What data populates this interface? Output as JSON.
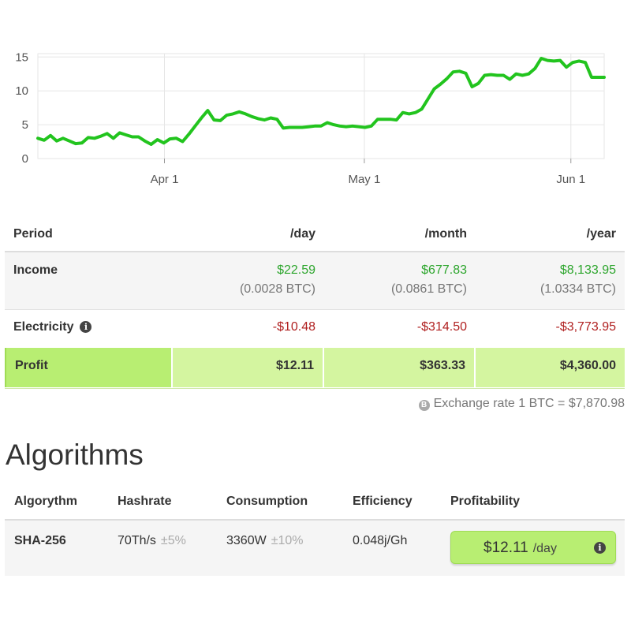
{
  "chart_data": {
    "type": "line",
    "x_ticks": [
      "Apr 1",
      "May 1",
      "Jun 1"
    ],
    "y_ticks": [
      0,
      5,
      10,
      15
    ],
    "ylim": [
      0,
      15.5
    ],
    "grid": true,
    "line_color": "#22c41e",
    "series": [
      {
        "values": [
          3.0,
          2.7,
          3.4,
          2.6,
          3.0,
          2.6,
          2.2,
          2.3,
          3.1,
          3.0,
          3.3,
          3.7,
          3.0,
          3.8,
          3.5,
          3.2,
          3.2,
          2.6,
          2.1,
          2.8,
          2.3,
          2.9,
          3.0,
          2.5,
          3.6,
          4.8,
          6.0,
          7.1,
          5.7,
          5.6,
          6.4,
          6.6,
          6.9,
          6.6,
          6.2,
          5.9,
          5.7,
          6.0,
          5.8,
          4.5,
          4.6,
          4.6,
          4.6,
          4.7,
          4.8,
          4.8,
          5.3,
          5.0,
          4.8,
          4.7,
          4.8,
          4.7,
          4.6,
          4.8,
          5.8,
          5.8,
          5.8,
          5.7,
          6.8,
          6.6,
          6.8,
          7.3,
          8.8,
          10.3,
          11.0,
          11.8,
          12.8,
          12.9,
          12.6,
          10.6,
          11.1,
          12.3,
          12.4,
          12.3,
          12.3,
          11.7,
          12.5,
          12.3,
          12.5,
          13.3,
          14.8,
          14.5,
          14.4,
          14.5,
          13.5,
          14.2,
          14.4,
          14.2,
          12.0,
          12.0,
          12.0
        ]
      }
    ],
    "x_start": "2018-03-13",
    "x_end": "2018-06-06",
    "x_tick_positions": [
      "2018-04-01",
      "2018-05-01",
      "2018-06-01"
    ]
  },
  "profit_table": {
    "headers": [
      "Period",
      "/day",
      "/month",
      "/year"
    ],
    "income": {
      "label": "Income",
      "usd": [
        "$22.59",
        "$677.83",
        "$8,133.95"
      ],
      "btc": [
        "(0.0028 BTC)",
        "(0.0861 BTC)",
        "(1.0334 BTC)"
      ]
    },
    "electricity": {
      "label": "Electricity",
      "icon": "info-icon",
      "values": [
        "-$10.48",
        "-$314.50",
        "-$3,773.95"
      ]
    },
    "profit": {
      "label": "Profit",
      "values": [
        "$12.11",
        "$363.33",
        "$4,360.00"
      ]
    }
  },
  "exchange_rate": {
    "icon": "bitcoin-icon",
    "text": "Exchange rate 1 BTC = $7,870.98"
  },
  "algorithms": {
    "title": "Algorithms",
    "headers": [
      "Algorythm",
      "Hashrate",
      "Consumption",
      "Efficiency",
      "Profitability"
    ],
    "rows": [
      {
        "name": "SHA-256",
        "hashrate": "70Th/s",
        "hashrate_tol": "±5%",
        "consumption": "3360W",
        "consumption_tol": "±10%",
        "efficiency": "0.048j/Gh",
        "profitability": "$12.11",
        "profitability_unit": "/day"
      }
    ]
  },
  "colors": {
    "positive": "#2ea62e",
    "negative": "#b02020",
    "profit_bg": "#d4f5a0",
    "profit_accent": "#b8ee72"
  }
}
